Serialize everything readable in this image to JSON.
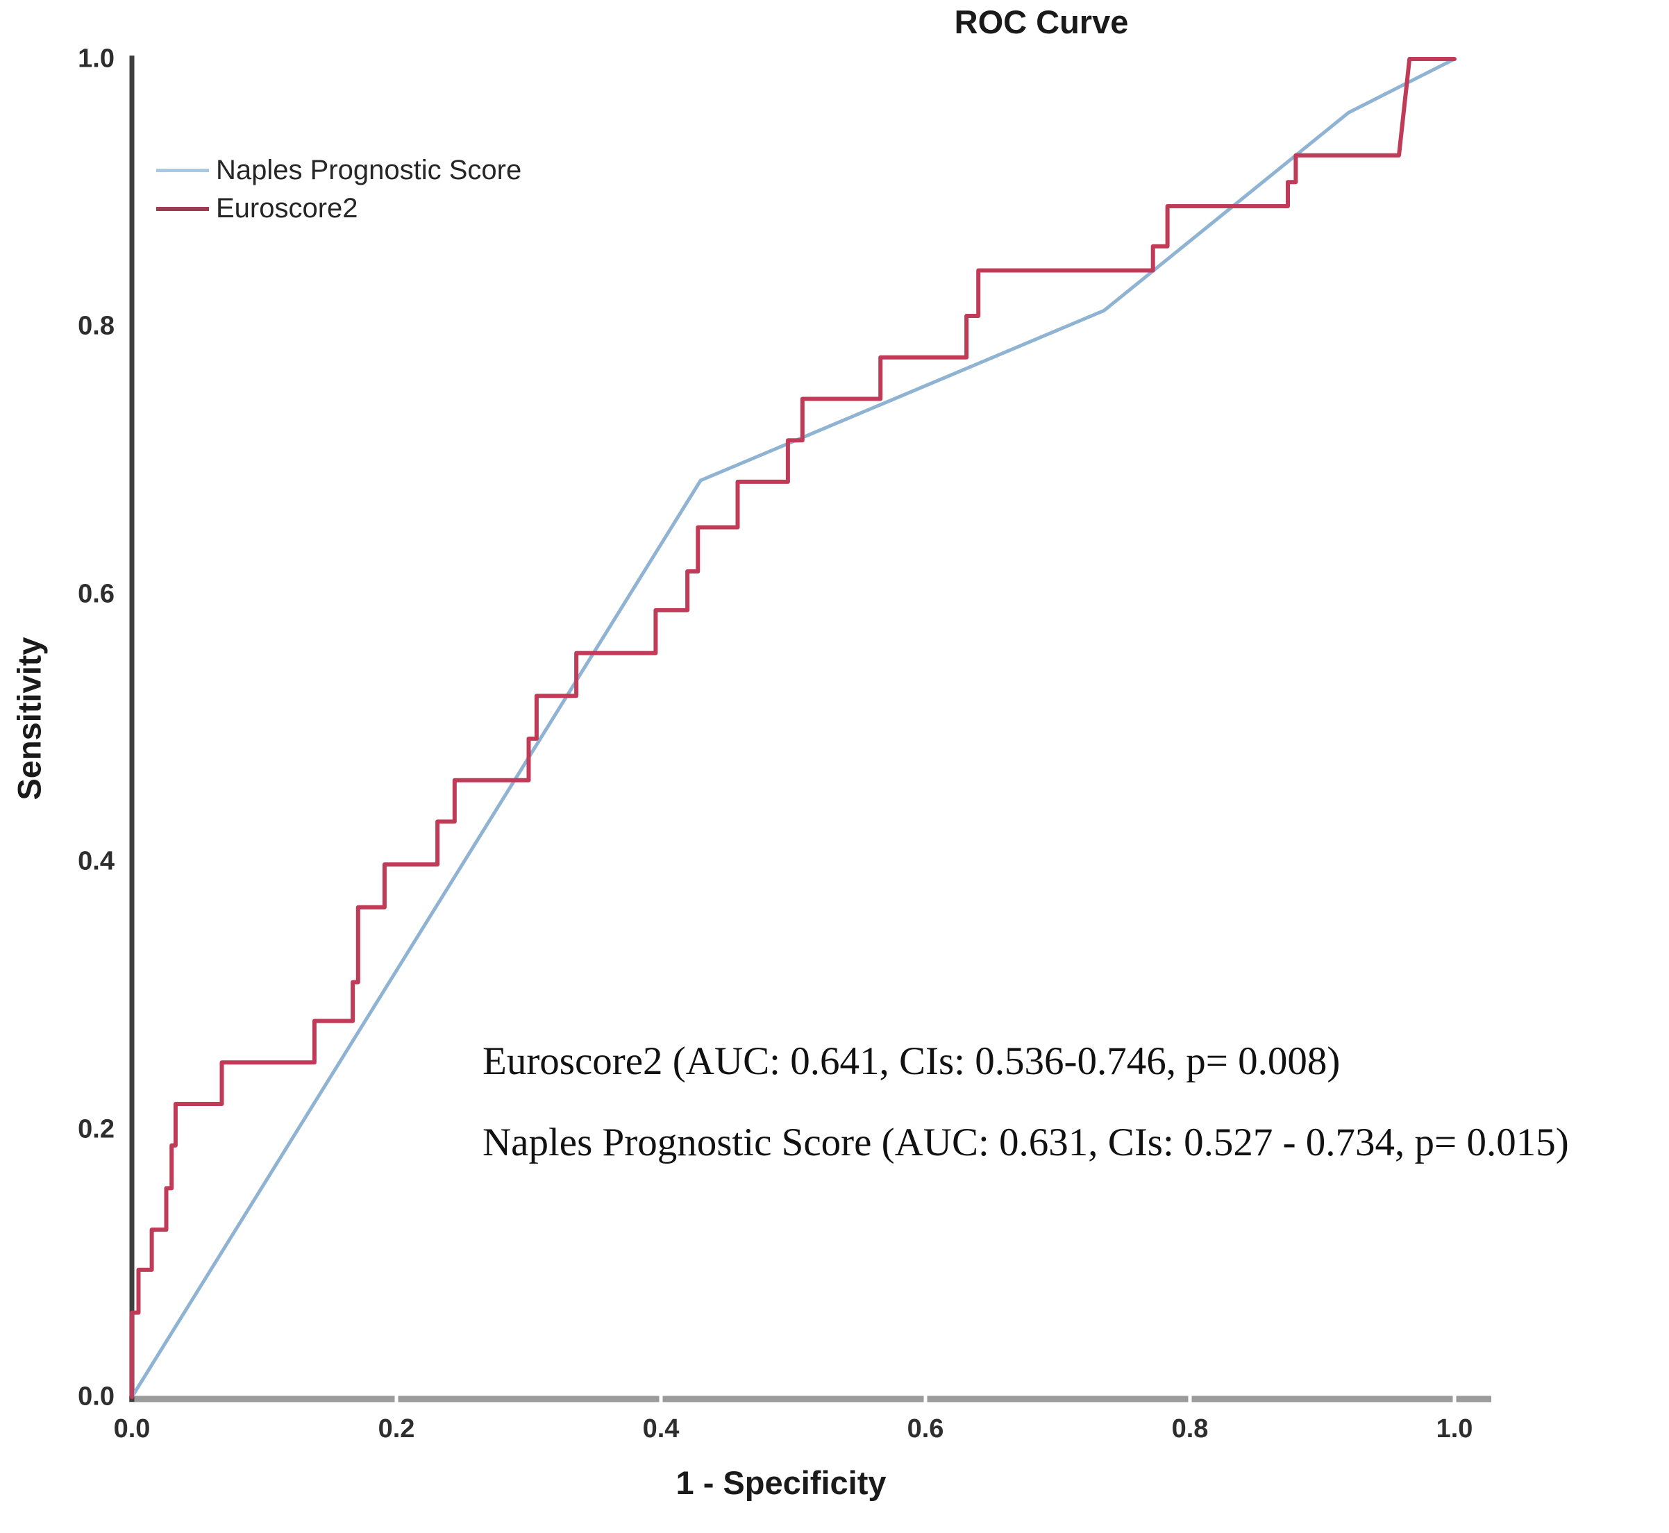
{
  "title": "ROC Curve",
  "axes": {
    "x_label": "1 - Specificity",
    "y_label": "Sensitivity",
    "x_ticks": [
      "0.0",
      "0.2",
      "0.4",
      "0.6",
      "0.8",
      "1.0"
    ],
    "y_ticks": [
      "0.0",
      "0.2",
      "0.4",
      "0.6",
      "0.8",
      "1.0"
    ]
  },
  "legend": {
    "items": [
      {
        "label": "Naples Prognostic Score",
        "color": "#a9c8e2",
        "thickness": 5
      },
      {
        "label": "Euroscore2",
        "color": "#9a3c52",
        "thickness": 6
      }
    ]
  },
  "annotations": {
    "line1": "Euroscore2 (AUC: 0.641, CIs: 0.536-0.746, p= 0.008)",
    "line2": "Naples Prognostic Score (AUC: 0.631, CIs: 0.527 - 0.734, p= 0.015)"
  },
  "colors": {
    "x_axis": "#9b9b9b",
    "y_axis": "#3f3f3f",
    "naples_curve": "#8fb3d2",
    "euroscore2_curve": "#c03b58",
    "background": "#ffffff"
  },
  "chart_data": {
    "type": "line",
    "title": "ROC Curve",
    "xlabel": "1 - Specificity",
    "ylabel": "Sensitivity",
    "xlim": [
      0,
      1
    ],
    "ylim": [
      0,
      1
    ],
    "grid": false,
    "legend_position": "top-left-inside",
    "x_tick_values": [
      0.0,
      0.2,
      0.4,
      0.6,
      0.8,
      1.0
    ],
    "y_tick_values": [
      0.0,
      0.2,
      0.4,
      0.6,
      0.8,
      1.0
    ],
    "series": [
      {
        "name": "Naples Prognostic Score",
        "color": "#8fb3d2",
        "stroke_width": 5,
        "auc": 0.631,
        "ci": "0.527 - 0.734",
        "p": 0.015,
        "points": [
          [
            0,
            0
          ],
          [
            0.43,
            0.685
          ],
          [
            0.735,
            0.812
          ],
          [
            0.92,
            0.96
          ],
          [
            1,
            1
          ]
        ]
      },
      {
        "name": "Euroscore2",
        "color": "#c03b58",
        "stroke_width": 6,
        "auc": 0.641,
        "ci": "0.536-0.746",
        "p": 0.008,
        "points": [
          [
            0,
            0
          ],
          [
            0,
            0.063
          ],
          [
            0.005,
            0.063
          ],
          [
            0.005,
            0.095
          ],
          [
            0.015,
            0.095
          ],
          [
            0.015,
            0.125
          ],
          [
            0.026,
            0.125
          ],
          [
            0.026,
            0.156
          ],
          [
            0.03,
            0.156
          ],
          [
            0.03,
            0.188
          ],
          [
            0.033,
            0.188
          ],
          [
            0.033,
            0.219
          ],
          [
            0.068,
            0.219
          ],
          [
            0.068,
            0.25
          ],
          [
            0.138,
            0.25
          ],
          [
            0.138,
            0.281
          ],
          [
            0.167,
            0.281
          ],
          [
            0.167,
            0.31
          ],
          [
            0.171,
            0.31
          ],
          [
            0.171,
            0.366
          ],
          [
            0.191,
            0.366
          ],
          [
            0.191,
            0.398
          ],
          [
            0.231,
            0.398
          ],
          [
            0.231,
            0.43
          ],
          [
            0.244,
            0.43
          ],
          [
            0.244,
            0.461
          ],
          [
            0.3,
            0.461
          ],
          [
            0.3,
            0.492
          ],
          [
            0.306,
            0.492
          ],
          [
            0.306,
            0.524
          ],
          [
            0.336,
            0.524
          ],
          [
            0.336,
            0.556
          ],
          [
            0.396,
            0.556
          ],
          [
            0.396,
            0.588
          ],
          [
            0.42,
            0.588
          ],
          [
            0.42,
            0.617
          ],
          [
            0.428,
            0.617
          ],
          [
            0.428,
            0.65
          ],
          [
            0.458,
            0.65
          ],
          [
            0.458,
            0.684
          ],
          [
            0.496,
            0.684
          ],
          [
            0.496,
            0.715
          ],
          [
            0.507,
            0.715
          ],
          [
            0.507,
            0.746
          ],
          [
            0.566,
            0.746
          ],
          [
            0.566,
            0.777
          ],
          [
            0.631,
            0.777
          ],
          [
            0.631,
            0.808
          ],
          [
            0.64,
            0.808
          ],
          [
            0.64,
            0.842
          ],
          [
            0.772,
            0.842
          ],
          [
            0.772,
            0.86
          ],
          [
            0.783,
            0.86
          ],
          [
            0.783,
            0.89
          ],
          [
            0.874,
            0.89
          ],
          [
            0.874,
            0.908
          ],
          [
            0.88,
            0.908
          ],
          [
            0.88,
            0.928
          ],
          [
            0.958,
            0.928
          ],
          [
            0.966,
            1
          ],
          [
            1,
            1
          ]
        ]
      }
    ]
  }
}
